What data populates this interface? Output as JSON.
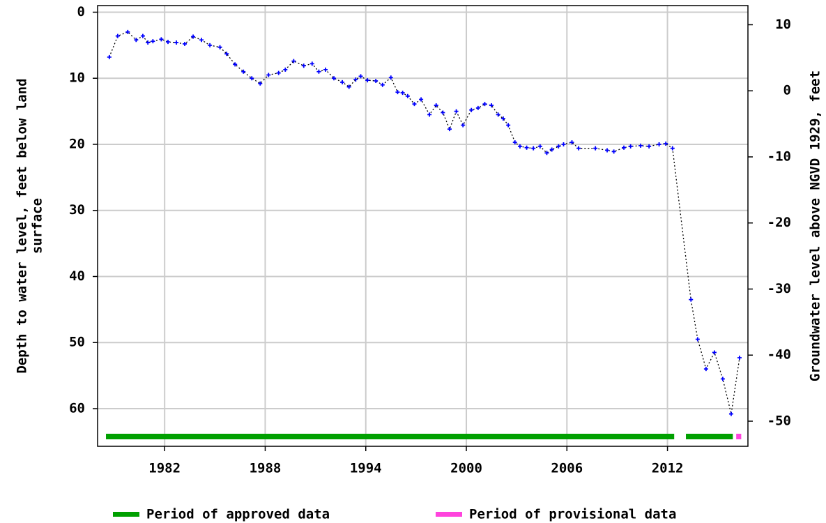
{
  "chart_data": {
    "type": "scatter",
    "y_label": [
      "Depth to water level, feet below land",
      "surface"
    ],
    "y2_label": "Groundwater level above NGVD 1929, feet",
    "xlim": [
      1978.0,
      2016.8
    ],
    "xticks": [
      1982,
      1988,
      1994,
      2000,
      2006,
      2012
    ],
    "ylim": [
      65.7,
      -1.0
    ],
    "yticks": [
      0,
      10,
      20,
      30,
      40,
      50,
      60
    ],
    "y2lim": [
      -53.8,
      12.9
    ],
    "y2ticks": [
      10,
      0,
      -10,
      -20,
      -30,
      -40,
      -50
    ],
    "grid": true,
    "points": {
      "color": "#0000ff",
      "x": [
        1978.7,
        1979.2,
        1979.8,
        1980.3,
        1980.7,
        1981.0,
        1981.3,
        1981.8,
        1982.2,
        1982.7,
        1983.2,
        1983.7,
        1984.2,
        1984.7,
        1985.3,
        1985.7,
        1986.2,
        1986.7,
        1987.2,
        1987.7,
        1988.2,
        1988.8,
        1989.2,
        1989.7,
        1990.3,
        1990.8,
        1991.2,
        1991.6,
        1992.1,
        1992.6,
        1993.0,
        1993.4,
        1993.7,
        1994.1,
        1994.6,
        1995.0,
        1995.5,
        1995.9,
        1996.2,
        1996.5,
        1996.9,
        1997.3,
        1997.8,
        1998.2,
        1998.6,
        1999.0,
        1999.4,
        1999.8,
        2000.3,
        2000.7,
        2001.1,
        2001.5,
        2001.9,
        2002.2,
        2002.5,
        2002.9,
        2003.2,
        2003.6,
        2004.0,
        2004.4,
        2004.8,
        2005.1,
        2005.5,
        2005.8,
        2006.3,
        2006.7,
        2007.7,
        2008.4,
        2008.8,
        2009.4,
        2009.8,
        2010.4,
        2010.9,
        2011.5,
        2011.9,
        2012.3,
        2013.4,
        2013.8,
        2014.3,
        2014.8,
        2015.3,
        2015.8,
        2016.3
      ],
      "values": [
        6.8,
        3.6,
        3.0,
        4.2,
        3.6,
        4.6,
        4.4,
        4.1,
        4.5,
        4.6,
        4.8,
        3.7,
        4.2,
        5.0,
        5.3,
        6.3,
        7.9,
        9.0,
        10.0,
        10.8,
        9.5,
        9.2,
        8.7,
        7.4,
        8.1,
        7.8,
        9.0,
        8.7,
        10.0,
        10.6,
        11.3,
        10.2,
        9.7,
        10.3,
        10.4,
        11.0,
        9.9,
        12.1,
        12.2,
        12.7,
        13.9,
        13.2,
        15.5,
        14.1,
        15.2,
        17.7,
        15.0,
        17.1,
        14.8,
        14.5,
        13.9,
        14.1,
        15.5,
        16.1,
        17.1,
        19.7,
        20.3,
        20.5,
        20.6,
        20.3,
        21.3,
        20.8,
        20.3,
        20.0,
        19.7,
        20.6,
        20.6,
        20.9,
        21.1,
        20.5,
        20.3,
        20.2,
        20.3,
        20.0,
        19.9,
        20.6,
        43.5,
        49.5,
        54.0,
        51.5,
        55.5,
        60.8,
        52.3
      ]
    },
    "series": [
      {
        "name": "Period of approved data",
        "color": "#00a000",
        "ranges": [
          [
            1978.5,
            2012.4
          ],
          [
            2013.1,
            2015.9
          ]
        ]
      },
      {
        "name": "Period of provisional data",
        "color": "#ff44dd",
        "ranges": [
          [
            2016.1,
            2016.4
          ]
        ]
      }
    ]
  }
}
